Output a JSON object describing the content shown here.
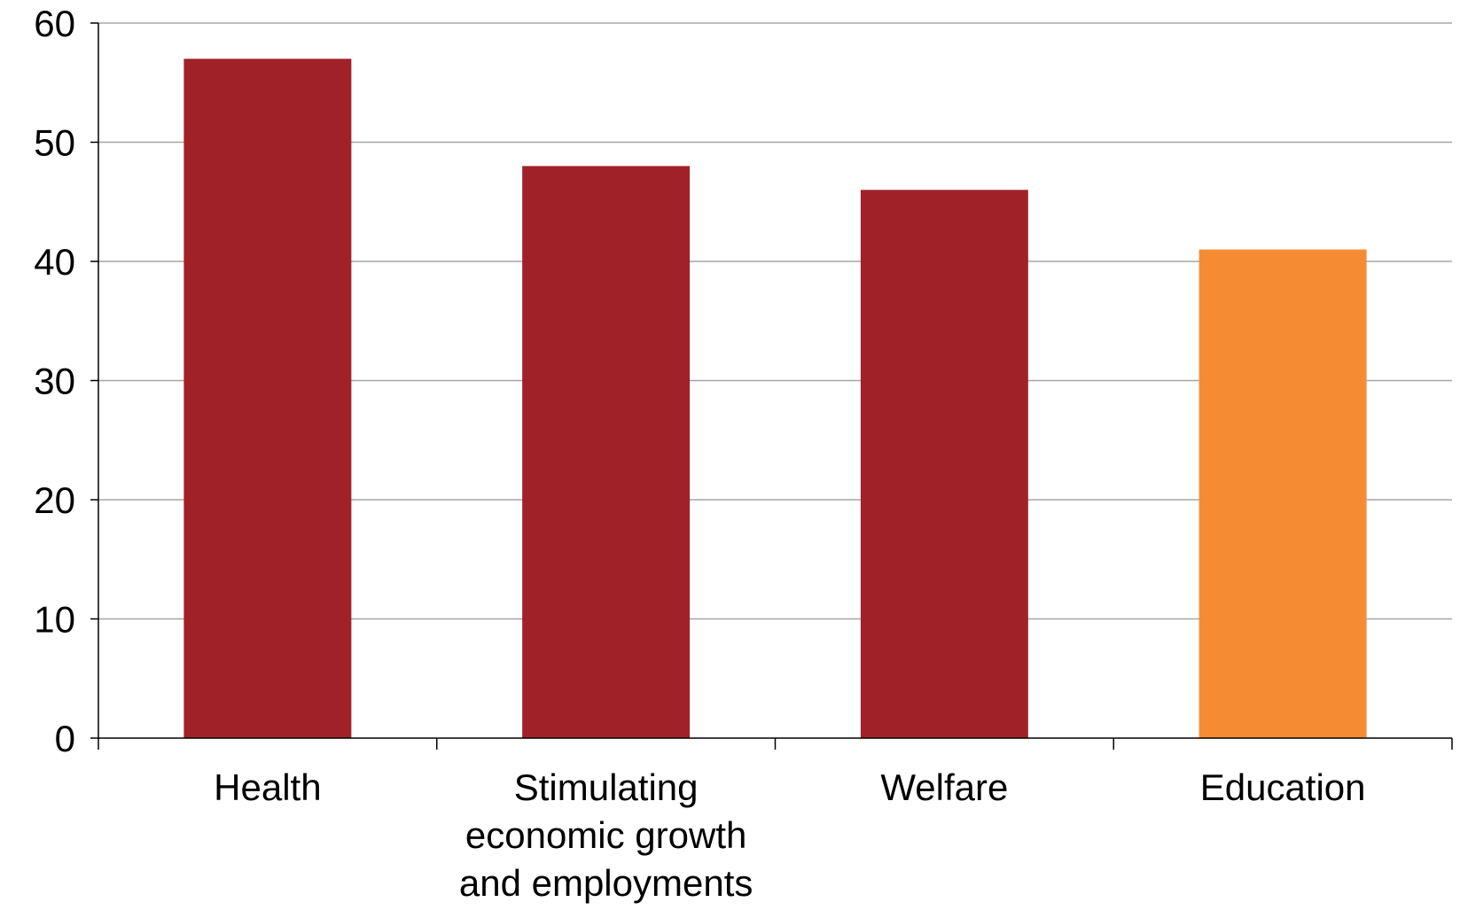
{
  "chart_data": {
    "type": "bar",
    "title": "",
    "xlabel": "",
    "ylabel": "",
    "categories": [
      [
        "Health"
      ],
      [
        "Stimulating",
        "economic growth",
        "and employments"
      ],
      [
        "Welfare"
      ],
      [
        "Education"
      ]
    ],
    "values": [
      57,
      48,
      46,
      41
    ],
    "bar_colors": [
      "#a02228",
      "#a02228",
      "#a02228",
      "#f58c33"
    ],
    "ylim": [
      0,
      60
    ],
    "yticks": [
      0,
      10,
      20,
      30,
      40,
      50,
      60
    ],
    "grid": true,
    "gridline_color": "#a6a6a6",
    "axis_color": "#000000",
    "legend": "none"
  }
}
